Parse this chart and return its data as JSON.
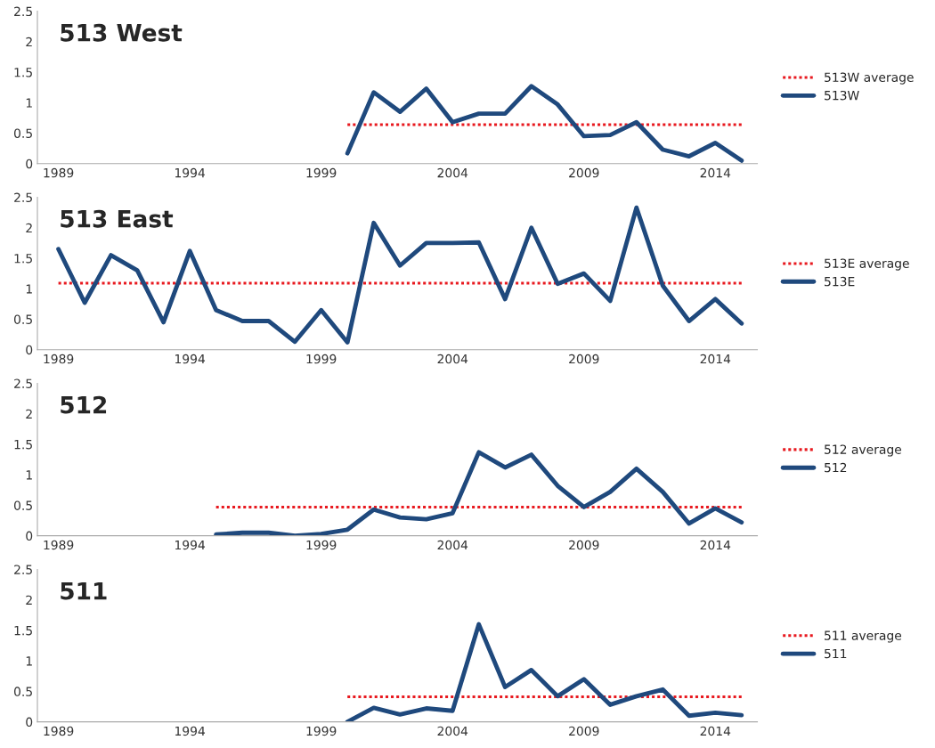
{
  "chart_data": [
    {
      "type": "line",
      "title": "513 West",
      "xlim": [
        1988.2,
        2015.6
      ],
      "xticks": [
        1989,
        1994,
        1999,
        2004,
        2009,
        2014
      ],
      "ylim": [
        0,
        2.5
      ],
      "yticks": [
        0,
        0.5,
        1,
        1.5,
        2,
        2.5
      ],
      "grid": false,
      "legend": "right",
      "marker": "none",
      "series": [
        {
          "name": "513W average",
          "line_style": "dotted",
          "color": "#e8191f",
          "x": [
            2000,
            2015
          ],
          "values": [
            0.64,
            0.64
          ]
        },
        {
          "name": "513W",
          "line_style": "solid",
          "color": "#1f497d",
          "x": [
            2000,
            2001,
            2002,
            2003,
            2004,
            2005,
            2006,
            2007,
            2008,
            2009,
            2010,
            2011,
            2012,
            2013,
            2014,
            2015
          ],
          "values": [
            0.17,
            1.17,
            0.85,
            1.23,
            0.68,
            0.82,
            0.82,
            1.27,
            0.97,
            0.45,
            0.47,
            0.68,
            0.23,
            0.12,
            0.34,
            0.05
          ]
        }
      ]
    },
    {
      "type": "line",
      "title": "513 East",
      "xlim": [
        1988.2,
        2015.6
      ],
      "xticks": [
        1989,
        1994,
        1999,
        2004,
        2009,
        2014
      ],
      "ylim": [
        0,
        2.5
      ],
      "yticks": [
        0,
        0.5,
        1,
        1.5,
        2,
        2.5
      ],
      "grid": false,
      "legend": "right",
      "marker": "none",
      "series": [
        {
          "name": "513E average",
          "line_style": "dotted",
          "color": "#e8191f",
          "x": [
            1989,
            2015
          ],
          "values": [
            1.09,
            1.09
          ]
        },
        {
          "name": "513E",
          "line_style": "solid",
          "color": "#1f497d",
          "x": [
            1989,
            1990,
            1991,
            1992,
            1993,
            1994,
            1995,
            1996,
            1997,
            1998,
            1999,
            2000,
            2001,
            2002,
            2003,
            2004,
            2005,
            2006,
            2007,
            2008,
            2009,
            2010,
            2011,
            2012,
            2013,
            2014,
            2015
          ],
          "values": [
            1.65,
            0.77,
            1.55,
            1.3,
            0.45,
            1.62,
            0.65,
            0.47,
            0.47,
            0.13,
            0.65,
            0.12,
            2.08,
            1.38,
            1.75,
            1.75,
            1.76,
            0.83,
            2.0,
            1.08,
            1.25,
            0.8,
            2.33,
            1.05,
            0.47,
            0.83,
            0.43
          ]
        }
      ]
    },
    {
      "type": "line",
      "title": "512",
      "xlim": [
        1988.2,
        2015.6
      ],
      "xticks": [
        1989,
        1994,
        1999,
        2004,
        2009,
        2014
      ],
      "ylim": [
        0,
        2.5
      ],
      "yticks": [
        0,
        0.5,
        1,
        1.5,
        2,
        2.5
      ],
      "grid": false,
      "legend": "right",
      "marker": "none",
      "series": [
        {
          "name": "512 average",
          "line_style": "dotted",
          "color": "#e8191f",
          "x": [
            1995,
            2015
          ],
          "values": [
            0.47,
            0.47
          ]
        },
        {
          "name": "512",
          "line_style": "solid",
          "color": "#1f497d",
          "x": [
            1995,
            1996,
            1997,
            1998,
            1999,
            2000,
            2001,
            2002,
            2003,
            2004,
            2005,
            2006,
            2007,
            2008,
            2009,
            2010,
            2011,
            2012,
            2013,
            2014,
            2015
          ],
          "values": [
            0.02,
            0.05,
            0.05,
            0.0,
            0.03,
            0.1,
            0.43,
            0.3,
            0.27,
            0.37,
            1.37,
            1.12,
            1.33,
            0.82,
            0.47,
            0.72,
            1.1,
            0.72,
            0.2,
            0.45,
            0.22
          ]
        }
      ]
    },
    {
      "type": "line",
      "title": "511",
      "xlim": [
        1988.2,
        2015.6
      ],
      "xticks": [
        1989,
        1994,
        1999,
        2004,
        2009,
        2014
      ],
      "ylim": [
        0,
        2.5
      ],
      "yticks": [
        0,
        0.5,
        1,
        1.5,
        2,
        2.5
      ],
      "grid": false,
      "legend": "right",
      "marker": "none",
      "series": [
        {
          "name": "511 average",
          "line_style": "dotted",
          "color": "#e8191f",
          "x": [
            2000,
            2015
          ],
          "values": [
            0.41,
            0.41
          ]
        },
        {
          "name": "511",
          "line_style": "solid",
          "color": "#1f497d",
          "x": [
            2000,
            2001,
            2002,
            2003,
            2004,
            2005,
            2006,
            2007,
            2008,
            2009,
            2010,
            2011,
            2012,
            2013,
            2014,
            2015
          ],
          "values": [
            0.0,
            0.23,
            0.12,
            0.22,
            0.18,
            1.6,
            0.57,
            0.85,
            0.42,
            0.7,
            0.28,
            0.42,
            0.53,
            0.1,
            0.15,
            0.11
          ]
        }
      ]
    }
  ]
}
